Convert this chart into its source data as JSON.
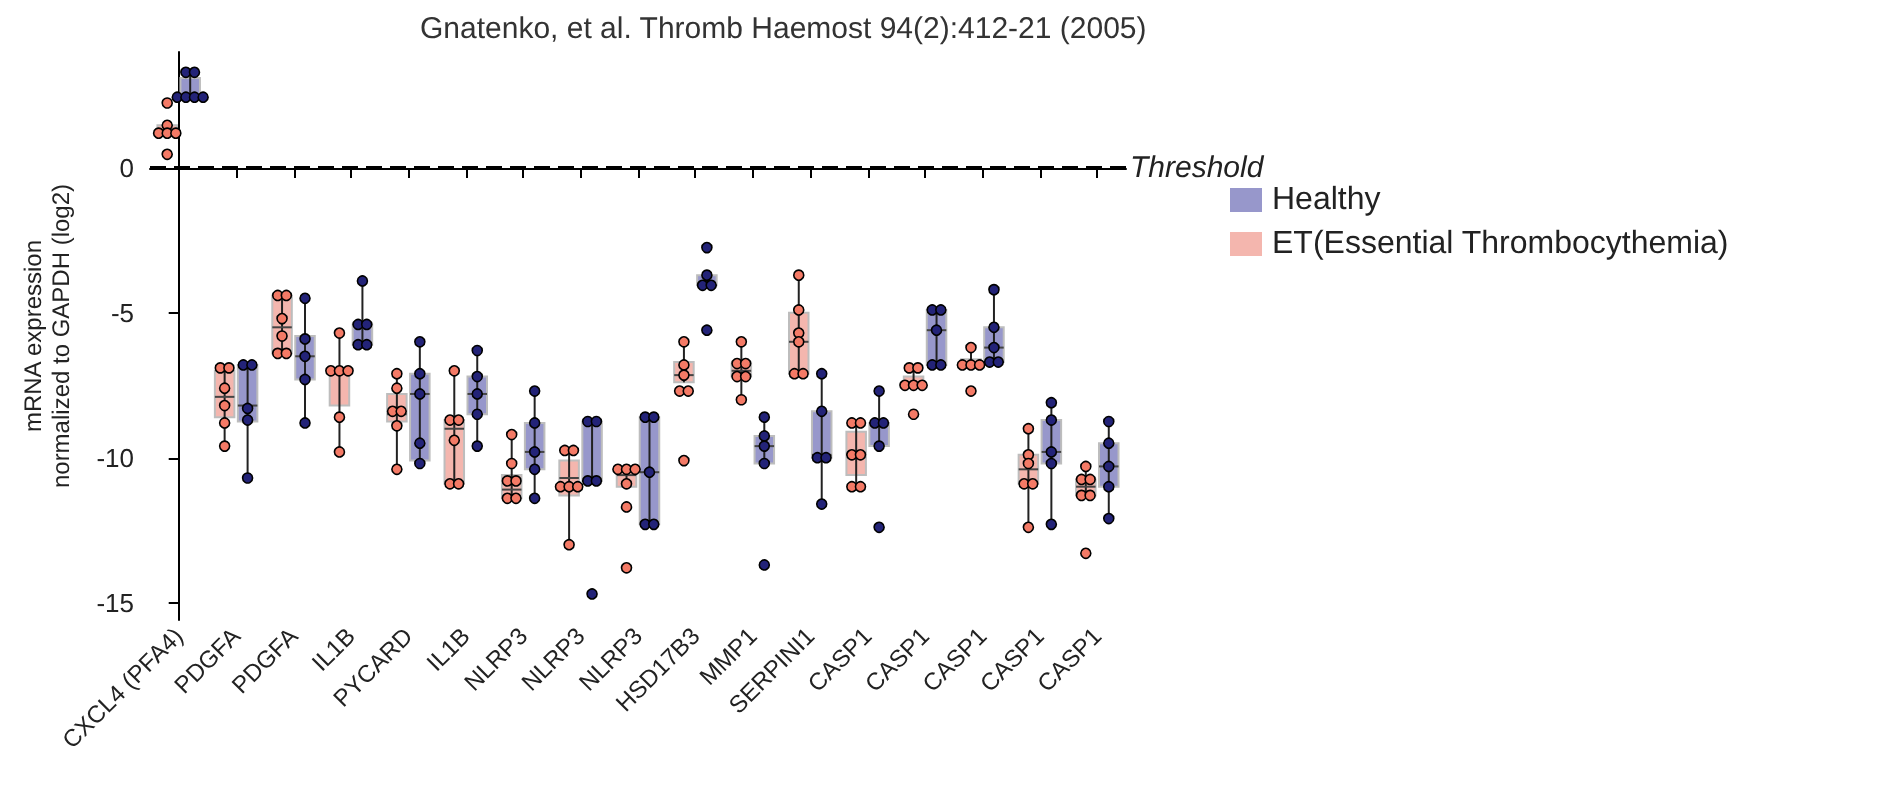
{
  "chart_data": {
    "type": "box",
    "title": "Gnatenko, et al. Thromb Haemost 94(2):412-21 (2005)",
    "ylabel": "mRNA expression\nnormalized to GAPDH (log2)",
    "categories": [
      "CXCL4 (PFA4)",
      "PDGFA",
      "PDGFA",
      "IL1B",
      "PYCARD",
      "IL1B",
      "NLRP3",
      "NLRP3",
      "NLRP3",
      "HSD17B3",
      "MMP1",
      "SERPINI1",
      "CASP1",
      "CASP1",
      "CASP1",
      "CASP1",
      "CASP1"
    ],
    "ylim": [
      -15.6,
      4
    ],
    "yticks": [
      -15,
      -10,
      -5,
      0
    ],
    "grid": false,
    "legend": "right",
    "marker": "circle",
    "ref_lines": [
      {
        "axis": "y",
        "value": 0,
        "label": "Threshold",
        "line_style": "dashed",
        "color": "#000000"
      }
    ],
    "series": [
      {
        "name": "ET(Essential Thrombocythemia)",
        "color": "#f4b6ae",
        "boxes": [
          {
            "low": 1.2,
            "q1": 1.2,
            "median": 1.2,
            "q3": 1.47,
            "high": 1.47
          },
          {
            "low": -9.6,
            "q1": -8.6,
            "median": -7.9,
            "q3": -7.0,
            "high": -6.9
          },
          {
            "low": -6.4,
            "q1": -6.4,
            "median": -5.5,
            "q3": -4.4,
            "high": -4.4
          },
          {
            "low": -9.8,
            "q1": -8.2,
            "median": -7.0,
            "q3": -7.0,
            "high": -5.7
          },
          {
            "low": -10.4,
            "q1": -8.75,
            "median": -8.5,
            "q3": -7.8,
            "high": -7.1
          },
          {
            "low": -10.9,
            "q1": -10.9,
            "median": -9.0,
            "q3": -8.7,
            "high": -7.0
          },
          {
            "low": -11.4,
            "q1": -11.4,
            "median": -11.1,
            "q3": -10.6,
            "high": -9.2
          },
          {
            "low": -13.0,
            "q1": -11.3,
            "median": -10.7,
            "q3": -10.1,
            "high": -9.75
          },
          {
            "low": -11.0,
            "q1": -11.0,
            "median": -10.6,
            "q3": -10.4,
            "high": -10.4
          },
          {
            "low": -7.4,
            "q1": -7.4,
            "median": -7.15,
            "q3": -6.7,
            "high": -6.0
          },
          {
            "low": -8.0,
            "q1": -7.2,
            "median": -7.0,
            "q3": -6.75,
            "high": -6.0
          },
          {
            "low": -7.1,
            "q1": -7.1,
            "median": -6.0,
            "q3": -5.0,
            "high": -3.7
          },
          {
            "low": -11.0,
            "q1": -10.6,
            "median": -9.9,
            "q3": -9.1,
            "high": -8.8
          },
          {
            "low": -7.5,
            "q1": -7.5,
            "median": -7.5,
            "q3": -7.2,
            "high": -6.9
          },
          {
            "low": -6.9,
            "q1": -6.9,
            "median": -6.8,
            "q3": -6.6,
            "high": -6.2
          },
          {
            "low": -12.4,
            "q1": -10.9,
            "median": -10.4,
            "q3": -9.9,
            "high": -9.0
          },
          {
            "low": -11.3,
            "q1": -11.3,
            "median": -11.0,
            "q3": -10.75,
            "high": -10.3
          }
        ]
      },
      {
        "type": "scatter",
        "color": "#f47a66",
        "values": [
          2.24,
          -6.9,
          -4.4,
          -5.7,
          -7.1,
          -7.0,
          -9.2,
          -9.75,
          -10.4,
          -6.0,
          -6.0,
          -3.7,
          -8.8,
          -6.9,
          -6.2,
          -9.0,
          -10.3
        ]
      },
      {
        "type": "scatter",
        "color": "#f47a66",
        "values": [
          1.47,
          -6.9,
          -4.4,
          -7.0,
          -7.6,
          -8.7,
          -10.2,
          -9.75,
          -10.4,
          -6.8,
          -6.75,
          -4.9,
          -8.8,
          -6.9,
          -6.8,
          -9.9,
          -10.75
        ]
      },
      {
        "type": "scatter",
        "color": "#f47a66",
        "values": [
          1.2,
          -7.6,
          -5.2,
          -7.0,
          -8.4,
          -8.7,
          -10.8,
          -11.0,
          -10.4,
          -7.15,
          -6.75,
          -5.7,
          -9.9,
          -7.5,
          -6.8,
          -10.2,
          -10.75
        ]
      },
      {
        "type": "scatter",
        "color": "#f47a66",
        "values": [
          1.2,
          -8.2,
          -5.8,
          -7.0,
          -8.4,
          -9.4,
          -10.8,
          -11.0,
          -10.9,
          -7.7,
          -7.2,
          -6.0,
          -9.9,
          -7.5,
          -6.8,
          -10.9,
          -11.3
        ]
      },
      {
        "type": "scatter",
        "color": "#f47a66",
        "values": [
          1.2,
          -8.8,
          -6.4,
          -8.6,
          -8.9,
          -10.9,
          -11.4,
          -11.0,
          -11.7,
          -7.7,
          -7.2,
          -7.1,
          -11.0,
          -7.5,
          -7.7,
          -10.9,
          -11.3
        ]
      },
      {
        "type": "scatter",
        "color": "#f47a66",
        "values": [
          0.47,
          -9.6,
          -6.4,
          -9.8,
          -10.4,
          -10.9,
          -11.4,
          -13.0,
          -13.8,
          -10.1,
          -8.0,
          -7.1,
          -11.0,
          -8.5,
          null,
          -12.4,
          -13.3
        ]
      },
      {
        "name": "Healthy",
        "color": "#9797cb",
        "boxes": [
          {
            "low": 2.44,
            "q1": 2.44,
            "median": 2.44,
            "q3": 3.1,
            "high": 3.3
          },
          {
            "low": -10.7,
            "q1": -8.75,
            "median": -8.2,
            "q3": -6.8,
            "high": -6.8
          },
          {
            "low": -8.8,
            "q1": -7.3,
            "median": -6.5,
            "q3": -5.8,
            "high": -4.5
          },
          {
            "low": -6.1,
            "q1": -6.1,
            "median": -5.4,
            "q3": -5.4,
            "high": -3.9
          },
          {
            "low": -10.2,
            "q1": -10.1,
            "median": -7.8,
            "q3": -7.1,
            "high": -6.0
          },
          {
            "low": -9.6,
            "q1": -8.5,
            "median": -7.8,
            "q3": -7.2,
            "high": -6.3
          },
          {
            "low": -11.4,
            "q1": -10.4,
            "median": -9.8,
            "q3": -8.8,
            "high": -7.7
          },
          {
            "low": -10.8,
            "q1": -10.8,
            "median": -10.8,
            "q3": -8.75,
            "high": -8.75
          },
          {
            "low": -12.3,
            "q1": -12.3,
            "median": -10.5,
            "q3": -8.6,
            "high": -8.6
          },
          {
            "low": -4.05,
            "q1": -4.05,
            "median": -4.05,
            "q3": -3.7,
            "high": -3.7
          },
          {
            "low": -10.2,
            "q1": -10.2,
            "median": -9.6,
            "q3": -9.25,
            "high": -8.6
          },
          {
            "low": -11.6,
            "q1": -10.0,
            "median": -9.9,
            "q3": -8.4,
            "high": -7.1
          },
          {
            "low": -9.6,
            "q1": -9.6,
            "median": -8.8,
            "q3": -8.8,
            "high": -7.7
          },
          {
            "low": -6.8,
            "q1": -6.8,
            "median": -5.6,
            "q3": -4.9,
            "high": -4.9
          },
          {
            "low": -6.7,
            "q1": -6.7,
            "median": -6.2,
            "q3": -5.5,
            "high": -4.2
          },
          {
            "low": -12.3,
            "q1": -10.2,
            "median": -9.8,
            "q3": -8.7,
            "high": -8.1
          },
          {
            "low": -12.1,
            "q1": -11.0,
            "median": -10.3,
            "q3": -9.5,
            "high": -8.75
          }
        ]
      },
      {
        "type": "scatter",
        "color": "#232378",
        "values": [
          3.3,
          -6.8,
          -4.5,
          -3.9,
          -6.0,
          -6.3,
          -7.7,
          -8.75,
          -8.6,
          -2.75,
          -8.6,
          -7.1,
          -7.7,
          -4.9,
          -4.2,
          -8.1,
          -8.75
        ]
      },
      {
        "type": "scatter",
        "color": "#232378",
        "values": [
          3.3,
          -6.8,
          -5.9,
          -5.4,
          -7.1,
          -7.2,
          -8.8,
          -8.75,
          -8.6,
          -3.7,
          -9.25,
          -8.4,
          -8.8,
          -4.9,
          -5.5,
          -8.7,
          -9.5
        ]
      },
      {
        "type": "scatter",
        "color": "#232378",
        "values": [
          2.44,
          -8.3,
          -6.5,
          -5.4,
          -7.8,
          -7.8,
          -9.8,
          -10.8,
          -10.5,
          -4.05,
          -9.6,
          -10.0,
          -8.8,
          -5.6,
          -6.2,
          -9.8,
          -10.3
        ]
      },
      {
        "type": "scatter",
        "color": "#232378",
        "values": [
          2.44,
          -8.7,
          -7.3,
          -6.1,
          -9.5,
          -8.5,
          -10.4,
          -10.8,
          -12.3,
          -4.05,
          -10.2,
          -10.0,
          -9.6,
          -6.8,
          -6.7,
          -10.2,
          -11.0
        ]
      },
      {
        "type": "scatter",
        "color": "#232378",
        "values": [
          2.44,
          -10.7,
          -8.8,
          -6.1,
          -10.2,
          -9.6,
          -11.4,
          -14.7,
          -12.3,
          -5.6,
          -13.7,
          -11.6,
          -12.4,
          -6.8,
          -6.7,
          -12.3,
          -12.1
        ]
      },
      {
        "type": "scatter",
        "color": "#232378",
        "values": [
          2.44,
          null,
          null,
          null,
          null,
          null,
          null,
          null,
          null,
          null,
          null,
          null,
          null,
          null,
          null,
          null,
          null
        ]
      }
    ]
  }
}
